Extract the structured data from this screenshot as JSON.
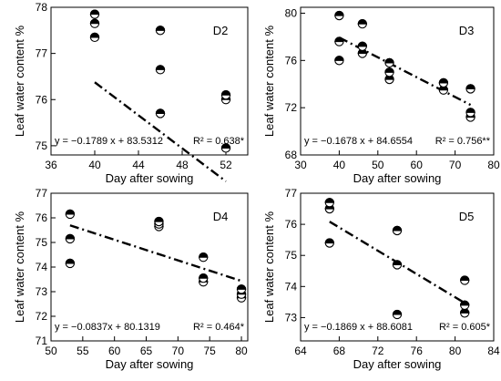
{
  "chart_data": [
    {
      "type": "scatter",
      "panel_label": "D2",
      "xlabel": "Day after sowing",
      "ylabel": "Leaf water content %",
      "xlim": [
        36,
        54
      ],
      "ylim": [
        74.8,
        78
      ],
      "xticks": [
        "36",
        "40",
        "44",
        "48",
        "52"
      ],
      "yticks": [
        "75",
        "76",
        "77",
        "78"
      ],
      "points": [
        [
          40,
          77.35
        ],
        [
          40,
          77.65
        ],
        [
          40,
          77.85
        ],
        [
          46,
          75.7
        ],
        [
          46,
          76.65
        ],
        [
          46,
          77.5
        ],
        [
          52,
          74.95
        ],
        [
          52,
          76.0
        ],
        [
          52,
          76.1
        ]
      ],
      "fit": {
        "slope": -0.1789,
        "intercept": 83.5312,
        "x_range": [
          40,
          52
        ]
      },
      "equation": "y = −0.1789 x + 83.5312",
      "r2": "R² = 0.638*"
    },
    {
      "type": "scatter",
      "panel_label": "D3",
      "xlabel": "Day after sowing",
      "ylabel": "Leaf water content %",
      "xlim": [
        30,
        80
      ],
      "ylim": [
        68,
        80.5
      ],
      "xticks": [
        "30",
        "40",
        "50",
        "60",
        "70",
        "80"
      ],
      "yticks": [
        "68",
        "72",
        "76",
        "80"
      ],
      "points": [
        [
          40,
          76.0
        ],
        [
          40,
          77.6
        ],
        [
          40,
          79.8
        ],
        [
          46,
          76.6
        ],
        [
          46,
          77.2
        ],
        [
          46,
          79.1
        ],
        [
          53,
          74.4
        ],
        [
          53,
          75.0
        ],
        [
          53,
          75.8
        ],
        [
          67,
          73.5
        ],
        [
          67,
          74.1
        ],
        [
          74,
          71.2
        ],
        [
          74,
          71.6
        ],
        [
          74,
          73.6
        ]
      ],
      "fit": {
        "slope": -0.1678,
        "intercept": 84.6554,
        "x_range": [
          40,
          74
        ]
      },
      "equation": "y = −0.1678 x + 84.6554",
      "r2": "R² = 0.756**"
    },
    {
      "type": "scatter",
      "panel_label": "D4",
      "xlabel": "Day after sowing",
      "ylabel": "Leaf water content %",
      "xlim": [
        50,
        81
      ],
      "ylim": [
        71,
        77
      ],
      "xticks": [
        "50",
        "55",
        "60",
        "65",
        "70",
        "75",
        "80"
      ],
      "yticks": [
        "71",
        "72",
        "73",
        "74",
        "75",
        "76",
        "77"
      ],
      "points": [
        [
          53,
          74.15
        ],
        [
          53,
          75.15
        ],
        [
          53,
          76.15
        ],
        [
          67,
          75.65
        ],
        [
          67,
          75.75
        ],
        [
          67,
          75.85
        ],
        [
          74,
          73.4
        ],
        [
          74,
          73.55
        ],
        [
          74,
          74.4
        ],
        [
          80,
          72.75
        ],
        [
          80,
          72.9
        ],
        [
          80,
          73.1
        ]
      ],
      "fit": {
        "slope": -0.0837,
        "intercept": 80.1319,
        "x_range": [
          53,
          80
        ]
      },
      "equation": "y = −0.0837x + 80.1319",
      "r2": "R² = 0.464*"
    },
    {
      "type": "scatter",
      "panel_label": "D5",
      "xlabel": "Day after sowing",
      "ylabel": "Leaf water content %",
      "xlim": [
        64,
        84
      ],
      "ylim": [
        72.25,
        77
      ],
      "xticks": [
        "64",
        "68",
        "72",
        "76",
        "80",
        "84"
      ],
      "yticks": [
        "73",
        "74",
        "75",
        "76",
        "77"
      ],
      "points": [
        [
          67,
          75.4
        ],
        [
          67,
          76.5
        ],
        [
          67,
          76.7
        ],
        [
          74,
          73.1
        ],
        [
          74,
          74.7
        ],
        [
          74,
          75.8
        ],
        [
          81,
          73.15
        ],
        [
          81,
          73.4
        ],
        [
          81,
          74.2
        ]
      ],
      "fit": {
        "slope": -0.1869,
        "intercept": 88.6081,
        "x_range": [
          67,
          81
        ]
      },
      "equation": "y = −0.1869 x + 88.6081",
      "r2": "R² = 0.605*"
    }
  ]
}
